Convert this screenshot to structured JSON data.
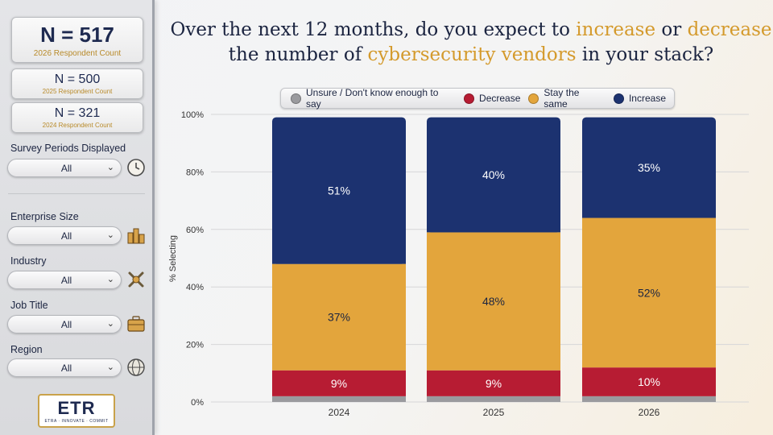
{
  "sidebar": {
    "counts": [
      {
        "n": "N = 517",
        "label": "2026 Respondent Count"
      },
      {
        "n": "N = 500",
        "label": "2025 Respondent Count"
      },
      {
        "n": "N = 321",
        "label": "2024 Respondent Count"
      }
    ],
    "filters": [
      {
        "label": "Survey Periods Displayed",
        "value": "All",
        "icon": "clock-icon"
      },
      {
        "label": "Enterprise Size",
        "value": "All",
        "icon": "buildings-icon"
      },
      {
        "label": "Industry",
        "value": "All",
        "icon": "tools-icon"
      },
      {
        "label": "Job Title",
        "value": "All",
        "icon": "briefcase-icon"
      },
      {
        "label": "Region",
        "value": "All",
        "icon": "globe-icon"
      }
    ],
    "logo": {
      "mark": "ETR",
      "tagline": "ETRA · INNOVATE · COMMIT"
    }
  },
  "title": {
    "part1": "Over the next 12 months, do you expect to ",
    "hl1": "increase",
    "part2": " or ",
    "hl2": "decrease",
    "part3": "the number of ",
    "hl3": "cybersecurity vendors",
    "part4": " in your stack?"
  },
  "colors": {
    "increase": "#1c3270",
    "stay": "#e3a53c",
    "decrease": "#b71c33",
    "unsure": "#9a9a9e",
    "highlight": "#d49a2c"
  },
  "chart_data": {
    "type": "bar",
    "stacked": true,
    "categories": [
      "2024",
      "2025",
      "2026"
    ],
    "series": [
      {
        "name": "Unsure / Don't know enough to say",
        "values": [
          2,
          2,
          2
        ],
        "labels": [
          "",
          "",
          ""
        ]
      },
      {
        "name": "Decrease",
        "values": [
          9,
          9,
          10
        ],
        "labels": [
          "9%",
          "9%",
          "10%"
        ]
      },
      {
        "name": "Stay the same",
        "values": [
          37,
          48,
          52
        ],
        "labels": [
          "37%",
          "48%",
          "52%"
        ]
      },
      {
        "name": "Increase",
        "values": [
          51,
          40,
          35
        ],
        "labels": [
          "51%",
          "40%",
          "35%"
        ]
      }
    ],
    "legend_order": [
      "Unsure / Don't know enough to say",
      "Decrease",
      "Stay the same",
      "Increase"
    ],
    "ylabel": "% Selecting",
    "yticks": [
      "0%",
      "20%",
      "40%",
      "60%",
      "80%",
      "100%"
    ],
    "ylim": [
      0,
      100
    ],
    "legend_position": "top"
  }
}
